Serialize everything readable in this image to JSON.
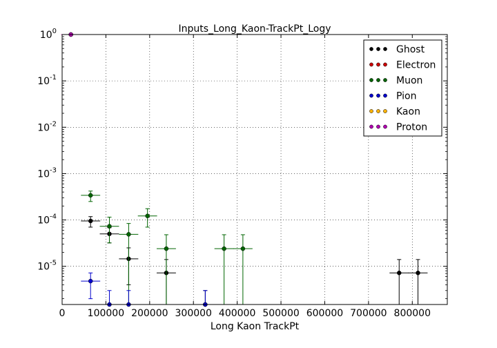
{
  "chart_data": {
    "type": "scatter",
    "title": "Inputs_Long_Kaon-TrackPt_Logy",
    "xlabel": "Long Kaon TrackPt",
    "ylabel": "",
    "xlim": [
      0,
      880000
    ],
    "ylim": [
      1.5e-06,
      1.0
    ],
    "yscale": "log",
    "grid": true,
    "legend_position": "top-right",
    "x_ticks": [
      {
        "value": 0,
        "label": "0"
      },
      {
        "value": 100000,
        "label": "100000"
      },
      {
        "value": 200000,
        "label": "200000"
      },
      {
        "value": 300000,
        "label": "300000"
      },
      {
        "value": 400000,
        "label": "400000"
      },
      {
        "value": 500000,
        "label": "500000"
      },
      {
        "value": 600000,
        "label": "600000"
      },
      {
        "value": 700000,
        "label": "700000"
      },
      {
        "value": 800000,
        "label": "800000"
      }
    ],
    "y_ticks": [
      {
        "value": 1e-05,
        "base": "10",
        "exp": "-5"
      },
      {
        "value": 0.0001,
        "base": "10",
        "exp": "-4"
      },
      {
        "value": 0.001,
        "base": "10",
        "exp": "-3"
      },
      {
        "value": 0.01,
        "base": "10",
        "exp": "-2"
      },
      {
        "value": 0.1,
        "base": "10",
        "exp": "-1"
      },
      {
        "value": 1,
        "base": "10",
        "exp": "0"
      }
    ],
    "series": [
      {
        "name": "Ghost",
        "color": "#000000",
        "points": [
          {
            "x": 65000,
            "y": 9.5e-05,
            "xerr": 22000,
            "ylo": 7e-05,
            "yhi": 0.000118
          },
          {
            "x": 108000,
            "y": 5e-05,
            "xerr": 22000,
            "ylo": 3.2e-05,
            "yhi": 6.8e-05
          },
          {
            "x": 152000,
            "y": 1.45e-05,
            "xerr": 22000,
            "ylo": 4e-06,
            "yhi": 2.5e-05
          },
          {
            "x": 238000,
            "y": 7.2e-06,
            "xerr": 22000,
            "ylo": 1.5e-06,
            "yhi": 1.4e-05
          },
          {
            "x": 327000,
            "y": 1.5e-06,
            "xerr": 0,
            "ylo": 1.5e-06,
            "yhi": 3e-06
          },
          {
            "x": 770000,
            "y": 7.2e-06,
            "xerr": 22000,
            "ylo": 1.5e-06,
            "yhi": 1.4e-05
          },
          {
            "x": 813000,
            "y": 7.2e-06,
            "xerr": 22000,
            "ylo": 1.5e-06,
            "yhi": 1.4e-05
          }
        ]
      },
      {
        "name": "Electron",
        "color": "#cc0000",
        "points": [
          {
            "x": 20000,
            "y": 1.0,
            "xerr": 22000,
            "ylo": 0.98,
            "yhi": 1.0
          }
        ]
      },
      {
        "name": "Muon",
        "color": "#006400",
        "points": [
          {
            "x": 65000,
            "y": 0.00034,
            "xerr": 22000,
            "ylo": 0.00025,
            "yhi": 0.00042
          },
          {
            "x": 108000,
            "y": 7.3e-05,
            "xerr": 22000,
            "ylo": 3.2e-05,
            "yhi": 0.000115
          },
          {
            "x": 152000,
            "y": 4.9e-05,
            "xerr": 22000,
            "ylo": 1.5e-06,
            "yhi": 8.4e-05
          },
          {
            "x": 195000,
            "y": 0.000122,
            "xerr": 22000,
            "ylo": 7e-05,
            "yhi": 0.000175
          },
          {
            "x": 238000,
            "y": 2.4e-05,
            "xerr": 22000,
            "ylo": 1.5e-06,
            "yhi": 4.8e-05
          },
          {
            "x": 370000,
            "y": 2.4e-05,
            "xerr": 22000,
            "ylo": 1.5e-06,
            "yhi": 4.8e-05
          },
          {
            "x": 413000,
            "y": 2.4e-05,
            "xerr": 22000,
            "ylo": 1.5e-06,
            "yhi": 4.8e-05
          }
        ]
      },
      {
        "name": "Pion",
        "color": "#0000cc",
        "points": [
          {
            "x": 65000,
            "y": 4.8e-06,
            "xerr": 22000,
            "ylo": 2e-06,
            "yhi": 7.2e-06
          },
          {
            "x": 108000,
            "y": 1.5e-06,
            "xerr": 0,
            "ylo": 1.5e-06,
            "yhi": 3e-06
          },
          {
            "x": 152000,
            "y": 1.5e-06,
            "xerr": 0,
            "ylo": 1.5e-06,
            "yhi": 3e-06
          },
          {
            "x": 327000,
            "y": 1.5e-06,
            "xerr": 0,
            "ylo": 1.5e-06,
            "yhi": 3e-06
          }
        ]
      },
      {
        "name": "Kaon",
        "color": "#ffb300",
        "points": []
      },
      {
        "name": "Proton",
        "color": "#b000b0",
        "points": [
          {
            "x": 20000,
            "y": 1.0,
            "xerr": 22000,
            "ylo": 0.98,
            "yhi": 1.0
          }
        ]
      }
    ]
  }
}
